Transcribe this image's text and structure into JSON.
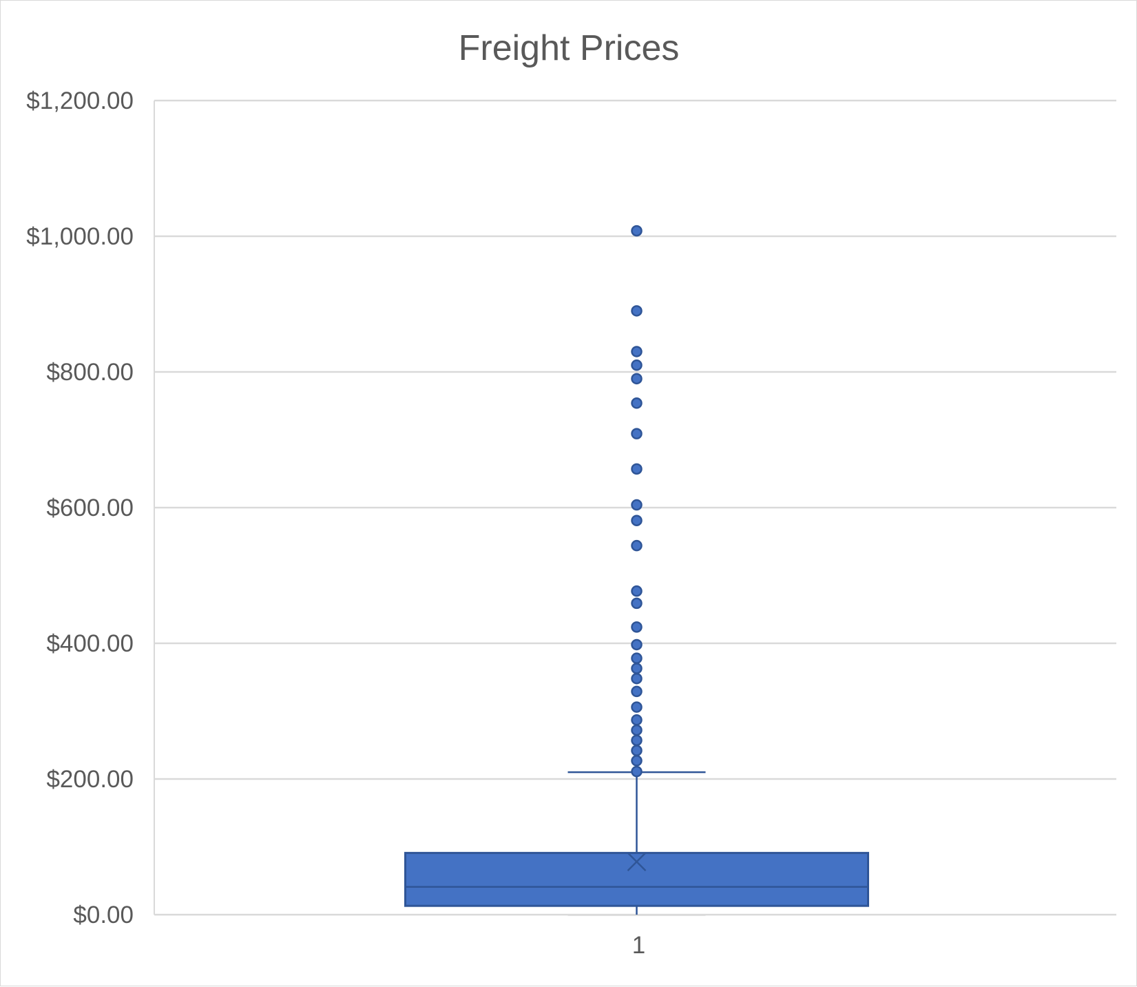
{
  "chart_data": {
    "type": "box",
    "title": "Freight Prices",
    "xlabel": "",
    "ylabel": "",
    "categories": [
      "1"
    ],
    "ylim": [
      0,
      1200
    ],
    "yticks": [
      0,
      200,
      400,
      600,
      800,
      1000,
      1200
    ],
    "ytick_labels": [
      "$0.00",
      "$200.00",
      "$400.00",
      "$600.00",
      "$800.00",
      "$1,000.00",
      "$1,200.00"
    ],
    "grid": true,
    "legend": "none",
    "colors": {
      "box_fill": "#4472C4",
      "box_stroke": "#2F5597",
      "grid": "#d9d9d9",
      "text": "#595959"
    },
    "series": [
      {
        "category": "1",
        "min": 0.02,
        "q1": 13,
        "median": 41,
        "q3": 91,
        "max": 210,
        "mean": 78,
        "outliers": [
          1008,
          890,
          830,
          810,
          790,
          754,
          709,
          657,
          604,
          581,
          544,
          477,
          459,
          424,
          398,
          378,
          363,
          348,
          329,
          306,
          287,
          272,
          257,
          242,
          227,
          211
        ]
      }
    ]
  }
}
